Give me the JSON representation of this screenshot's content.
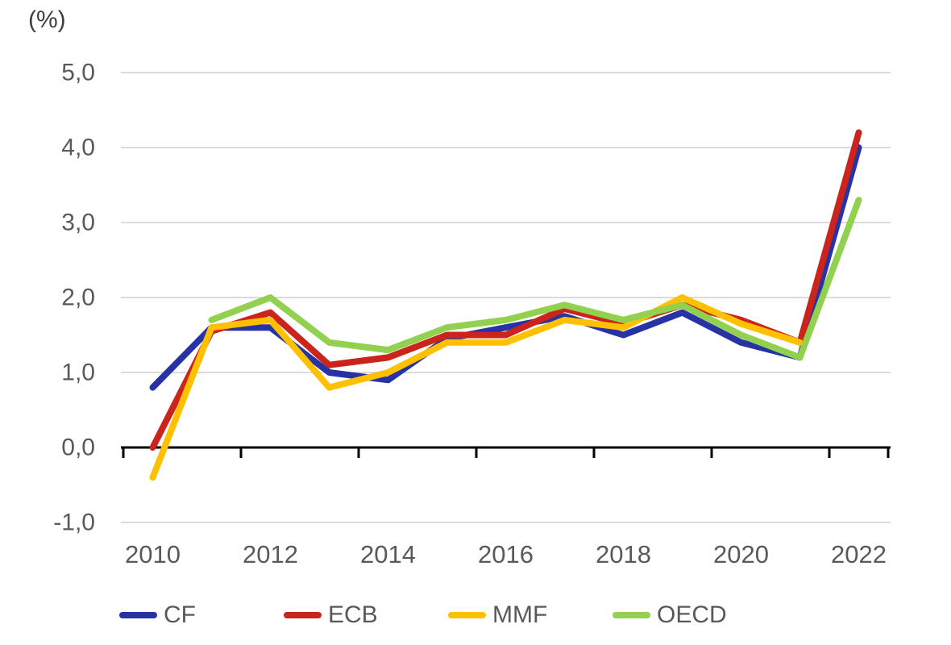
{
  "percent_label": "(%)",
  "colors": {
    "axis_line": "#000000",
    "grid_line": "#d6d6d6",
    "tick_label": "#595959",
    "percent_label": "#3f3f3f"
  },
  "chart_data": {
    "type": "line",
    "x": [
      2010,
      2011,
      2012,
      2013,
      2014,
      2015,
      2016,
      2017,
      2018,
      2019,
      2020,
      2021,
      2022
    ],
    "series": [
      {
        "name": "CF",
        "color": "#2733a3",
        "values": [
          0.8,
          1.6,
          1.6,
          1.0,
          0.9,
          1.45,
          1.6,
          1.75,
          1.5,
          1.8,
          1.4,
          1.2,
          4.0
        ]
      },
      {
        "name": "ECB",
        "color": "#cb241c",
        "values": [
          0.0,
          1.55,
          1.8,
          1.1,
          1.2,
          1.5,
          1.5,
          1.85,
          1.65,
          1.9,
          1.7,
          1.4,
          4.2
        ]
      },
      {
        "name": "MMF",
        "color": "#ffc000",
        "values": [
          -0.4,
          1.6,
          1.7,
          0.8,
          1.0,
          1.4,
          1.4,
          1.7,
          1.6,
          2.0,
          1.65,
          1.4,
          null
        ]
      },
      {
        "name": "OECD",
        "color": "#92d050",
        "values": [
          null,
          1.7,
          2.0,
          1.4,
          1.3,
          1.6,
          1.7,
          1.9,
          1.7,
          1.9,
          1.5,
          1.2,
          3.3
        ]
      }
    ],
    "title": "",
    "xlabel": "",
    "ylabel": "(%)",
    "ylim": [
      -1,
      5
    ],
    "grid": true,
    "legend_position": "bottom",
    "y_ticks": [
      {
        "value": 5,
        "label": "5,0"
      },
      {
        "value": 4,
        "label": "4,0"
      },
      {
        "value": 3,
        "label": "3,0"
      },
      {
        "value": 2,
        "label": "2,0"
      },
      {
        "value": 1,
        "label": "1,0"
      },
      {
        "value": 0,
        "label": "0,0"
      },
      {
        "value": -1,
        "label": "-1,0"
      }
    ],
    "x_tick_labels": [
      "2010",
      "2012",
      "2014",
      "2016",
      "2018",
      "2020",
      "2022"
    ]
  }
}
